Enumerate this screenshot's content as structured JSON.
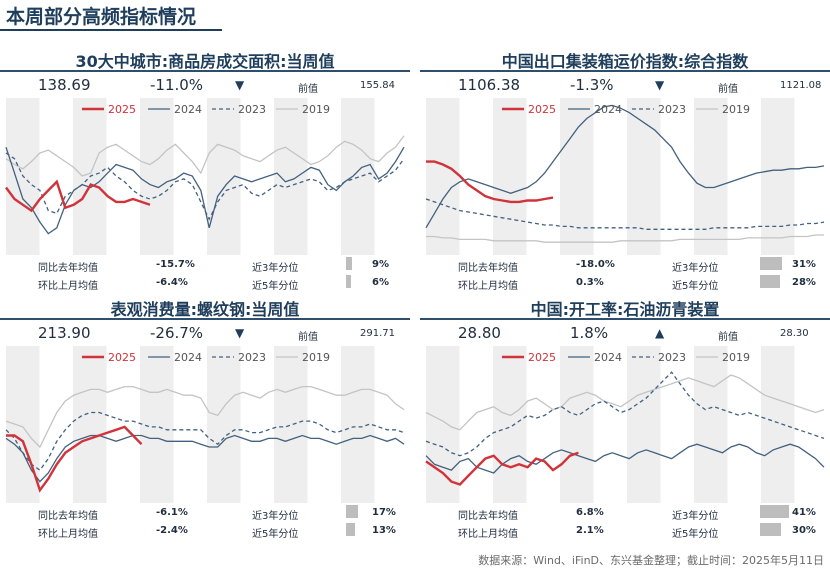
{
  "page": {
    "title": "本周部分高频指标情况",
    "source": "数据来源：Wind、iFinD、东兴基金整理；截止时间：2025年5月11日"
  },
  "labels": {
    "prev": "前值",
    "yoy": "同比去年均值",
    "mom": "环比上月均值",
    "pct3": "近3年分位",
    "pct5": "近5年分位"
  },
  "legend": {
    "s2025": "2025",
    "s2024": "2024",
    "s2023": "2023",
    "s2019": "2019"
  },
  "colors": {
    "s2025": "#d0333a",
    "s2024": "#42617f",
    "s2023": "#42617f",
    "s2019": "#c4c4c4",
    "band": "#eeeeee",
    "title": "#1f3e5c"
  },
  "chart_data": [
    {
      "id": "housing",
      "type": "line",
      "title": "30大中城市:商品房成交面积:当周值",
      "current": "138.69",
      "change": "-11.0%",
      "direction": "▼",
      "prev": "155.84",
      "stats": {
        "yoy": "-15.7%",
        "mom": "-6.4%",
        "pct3": "9%",
        "pct5": "6%",
        "pct3_val": 9,
        "pct5_val": 6
      },
      "ylim": [
        0,
        100
      ],
      "series": {
        "s2019": [
          62,
          58,
          55,
          60,
          66,
          68,
          64,
          60,
          56,
          50,
          52,
          66,
          70,
          72,
          68,
          64,
          60,
          58,
          62,
          68,
          72,
          66,
          60,
          52,
          66,
          72,
          70,
          68,
          64,
          62,
          60,
          64,
          68,
          70,
          66,
          62,
          58,
          60,
          64,
          70,
          74,
          72,
          68,
          62,
          60,
          66,
          70,
          78
        ],
        "s2024": [
          70,
          52,
          34,
          28,
          18,
          10,
          14,
          30,
          40,
          44,
          42,
          46,
          52,
          58,
          56,
          54,
          48,
          44,
          42,
          46,
          48,
          52,
          50,
          40,
          14,
          36,
          44,
          50,
          48,
          46,
          48,
          50,
          52,
          46,
          48,
          52,
          56,
          54,
          44,
          40,
          46,
          50,
          56,
          58,
          48,
          52,
          60,
          70
        ],
        "s2023": [
          66,
          62,
          50,
          44,
          40,
          26,
          24,
          36,
          40,
          44,
          50,
          52,
          56,
          50,
          46,
          40,
          36,
          34,
          36,
          40,
          46,
          48,
          44,
          32,
          20,
          32,
          40,
          42,
          44,
          38,
          36,
          40,
          44,
          42,
          44,
          46,
          48,
          46,
          40,
          42,
          46,
          48,
          50,
          52,
          46,
          50,
          54,
          62
        ],
        "s2025": [
          42,
          34,
          30,
          26,
          34,
          40,
          46,
          28,
          30,
          34,
          44,
          42,
          36,
          32,
          32,
          34,
          32,
          30
        ]
      }
    },
    {
      "id": "container",
      "type": "line",
      "title": "中国出口集装箱运价指数:综合指数",
      "current": "1106.38",
      "change": "-1.3%",
      "direction": "▼",
      "prev": "1121.08",
      "stats": {
        "yoy": "-18.0%",
        "mom": "0.3%",
        "pct3": "31%",
        "pct5": "28%",
        "pct3_val": 31,
        "pct5_val": 28
      },
      "ylim": [
        0,
        100
      ],
      "series": {
        "s2019": [
          8,
          8,
          7,
          7,
          6,
          6,
          6,
          6,
          5,
          5,
          5,
          5,
          5,
          5,
          4,
          4,
          4,
          4,
          4,
          4,
          4,
          4,
          4,
          5,
          5,
          5,
          5,
          5,
          5,
          5,
          6,
          6,
          6,
          6,
          6,
          6,
          6,
          6,
          7,
          7,
          7,
          7,
          7,
          8,
          8,
          8,
          9,
          9
        ],
        "s2024": [
          14,
          24,
          34,
          42,
          46,
          48,
          46,
          44,
          42,
          40,
          38,
          40,
          42,
          46,
          52,
          60,
          68,
          76,
          84,
          90,
          94,
          98,
          99,
          97,
          94,
          90,
          86,
          82,
          76,
          70,
          60,
          52,
          45,
          42,
          42,
          44,
          46,
          48,
          50,
          52,
          53,
          54,
          54,
          55,
          55,
          56,
          56,
          57
        ],
        "s2023": [
          34,
          32,
          30,
          28,
          26,
          25,
          24,
          23,
          22,
          21,
          20,
          19,
          18,
          17,
          16,
          16,
          15,
          15,
          14,
          14,
          14,
          14,
          14,
          14,
          14,
          14,
          13,
          13,
          13,
          13,
          13,
          13,
          13,
          13,
          14,
          14,
          14,
          14,
          14,
          15,
          15,
          15,
          15,
          16,
          16,
          17,
          17,
          18
        ],
        "s2025": [
          60,
          60,
          58,
          55,
          50,
          44,
          40,
          36,
          34,
          33,
          32,
          32,
          33,
          33,
          34,
          35
        ]
      }
    },
    {
      "id": "rebar",
      "type": "line",
      "title": "表观消费量:螺纹钢:当周值",
      "current": "213.90",
      "change": "-26.7%",
      "direction": "▼",
      "prev": "291.71",
      "stats": {
        "yoy": "-6.1%",
        "mom": "-2.4%",
        "pct3": "17%",
        "pct5": "13%",
        "pct3_val": 17,
        "pct5_val": 13
      },
      "ylim": [
        0,
        100
      ],
      "series": {
        "s2019": [
          52,
          50,
          48,
          40,
          34,
          46,
          58,
          66,
          70,
          72,
          74,
          74,
          72,
          74,
          76,
          76,
          74,
          72,
          72,
          74,
          72,
          70,
          70,
          68,
          58,
          56,
          64,
          70,
          72,
          70,
          68,
          72,
          74,
          72,
          74,
          76,
          76,
          74,
          72,
          70,
          70,
          72,
          74,
          74,
          72,
          70,
          64,
          60
        ],
        "s2024": [
          40,
          36,
          30,
          18,
          10,
          16,
          26,
          34,
          38,
          40,
          42,
          42,
          40,
          38,
          40,
          42,
          42,
          40,
          40,
          38,
          38,
          38,
          38,
          36,
          34,
          34,
          40,
          42,
          40,
          38,
          38,
          40,
          40,
          38,
          40,
          42,
          40,
          40,
          38,
          36,
          38,
          40,
          40,
          42,
          40,
          38,
          40,
          36
        ],
        "s2023": [
          46,
          40,
          30,
          22,
          18,
          26,
          38,
          46,
          52,
          56,
          58,
          58,
          56,
          54,
          52,
          52,
          50,
          48,
          48,
          46,
          46,
          46,
          46,
          46,
          40,
          36,
          42,
          46,
          46,
          44,
          44,
          46,
          48,
          48,
          50,
          52,
          52,
          50,
          46,
          44,
          46,
          48,
          48,
          50,
          48,
          46,
          46,
          44
        ],
        "s2025": [
          42,
          42,
          38,
          22,
          4,
          12,
          22,
          30,
          34,
          38,
          40,
          42,
          44,
          46,
          48,
          42,
          36
        ]
      }
    },
    {
      "id": "asphalt",
      "type": "line",
      "title": "中国:开工率:石油沥青装置",
      "current": "28.80",
      "change": "1.8%",
      "direction": "▲",
      "prev": "28.30",
      "stats": {
        "yoy": "6.8%",
        "mom": "2.1%",
        "pct3": "41%",
        "pct5": "30%",
        "pct3_val": 41,
        "pct5_val": 30
      },
      "ylim": [
        0,
        100
      ],
      "series": {
        "s2019": [
          58,
          55,
          52,
          48,
          46,
          52,
          58,
          60,
          62,
          58,
          56,
          60,
          66,
          68,
          64,
          60,
          62,
          68,
          70,
          72,
          70,
          66,
          64,
          62,
          66,
          70,
          72,
          74,
          76,
          78,
          80,
          82,
          80,
          78,
          76,
          80,
          84,
          82,
          78,
          74,
          70,
          68,
          66,
          64,
          62,
          60,
          58,
          60
        ],
        "s2024": [
          28,
          22,
          20,
          18,
          24,
          26,
          20,
          18,
          16,
          22,
          26,
          28,
          24,
          22,
          26,
          30,
          32,
          30,
          28,
          26,
          24,
          28,
          30,
          28,
          26,
          30,
          32,
          30,
          28,
          26,
          30,
          34,
          36,
          34,
          32,
          30,
          34,
          36,
          34,
          30,
          28,
          32,
          34,
          36,
          34,
          30,
          26,
          20
        ],
        "s2023": [
          38,
          36,
          34,
          30,
          28,
          30,
          34,
          40,
          44,
          46,
          48,
          52,
          56,
          54,
          56,
          60,
          62,
          58,
          56,
          60,
          64,
          66,
          62,
          58,
          60,
          64,
          68,
          74,
          80,
          86,
          78,
          70,
          64,
          60,
          62,
          60,
          58,
          56,
          58,
          56,
          54,
          52,
          50,
          48,
          46,
          44,
          42,
          40
        ],
        "s2025": [
          24,
          20,
          16,
          10,
          8,
          14,
          20,
          26,
          28,
          22,
          20,
          22,
          20,
          26,
          24,
          18,
          22,
          28,
          30
        ]
      }
    }
  ]
}
